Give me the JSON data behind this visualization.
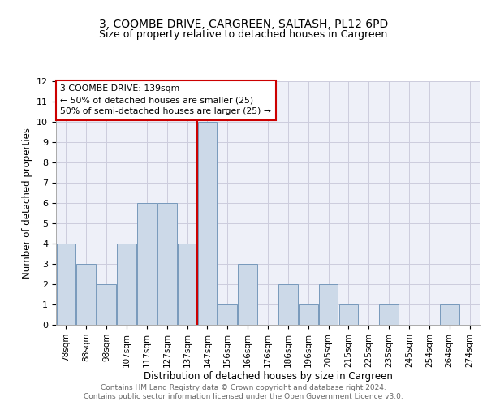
{
  "title": "3, COOMBE DRIVE, CARGREEN, SALTASH, PL12 6PD",
  "subtitle": "Size of property relative to detached houses in Cargreen",
  "xlabel": "Distribution of detached houses by size in Cargreen",
  "ylabel": "Number of detached properties",
  "bar_labels": [
    "78sqm",
    "88sqm",
    "98sqm",
    "107sqm",
    "117sqm",
    "127sqm",
    "137sqm",
    "147sqm",
    "156sqm",
    "166sqm",
    "176sqm",
    "186sqm",
    "196sqm",
    "205sqm",
    "215sqm",
    "225sqm",
    "235sqm",
    "245sqm",
    "254sqm",
    "264sqm",
    "274sqm"
  ],
  "bar_values": [
    4,
    3,
    2,
    4,
    6,
    6,
    4,
    10,
    1,
    3,
    0,
    2,
    1,
    2,
    1,
    0,
    1,
    0,
    0,
    1,
    0
  ],
  "bar_color": "#ccd9e8",
  "bar_edgecolor": "#7799bb",
  "property_line_x": 6.5,
  "property_label": "3 COOMBE DRIVE: 139sqm",
  "annotation_line1": "← 50% of detached houses are smaller (25)",
  "annotation_line2": "50% of semi-detached houses are larger (25) →",
  "annotation_box_edgecolor": "#cc0000",
  "vline_color": "#cc0000",
  "ylim": [
    0,
    12
  ],
  "yticks": [
    0,
    1,
    2,
    3,
    4,
    5,
    6,
    7,
    8,
    9,
    10,
    11,
    12
  ],
  "grid_color": "#ccccdd",
  "bg_color": "#eef0f8",
  "title_fontsize": 10,
  "subtitle_fontsize": 9,
  "footer_line1": "Contains HM Land Registry data © Crown copyright and database right 2024.",
  "footer_line2": "Contains public sector information licensed under the Open Government Licence v3.0."
}
